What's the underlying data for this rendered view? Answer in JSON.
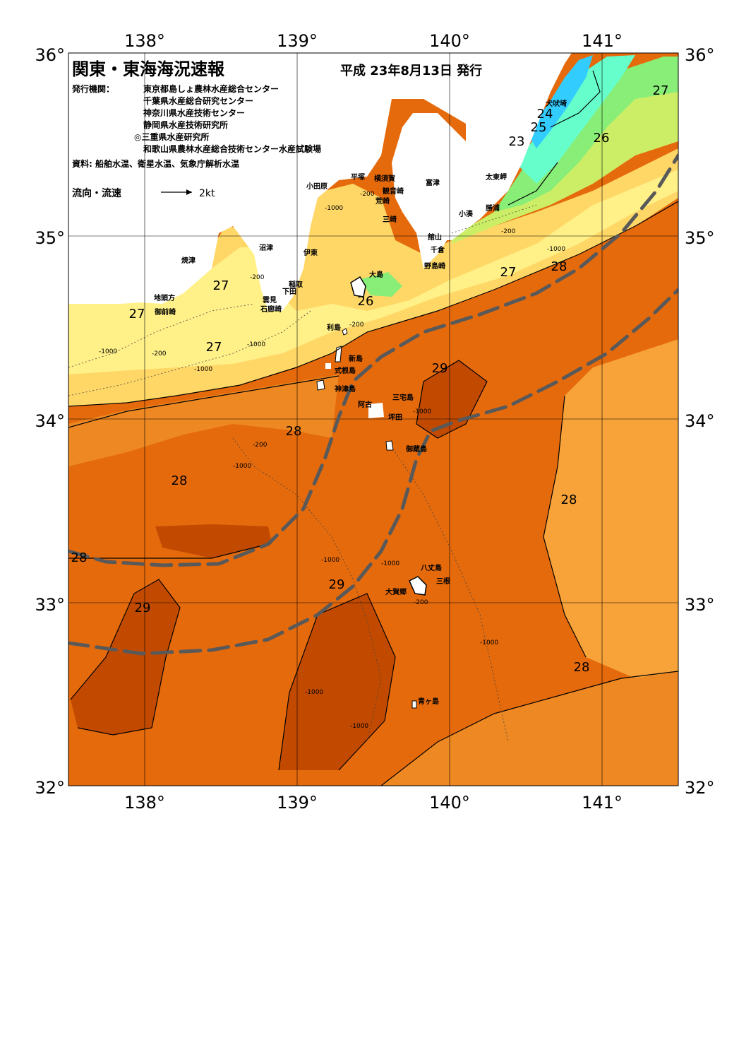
{
  "title": "関東・東海海況速報",
  "issue_date": "平成 23年8月13日 発行",
  "publishers_label": "発行機関：",
  "publishers": [
    "東京都島しょ農林水産総合センター",
    "千葉県水産総合研究センター",
    "神奈川県水産技術センター",
    "静岡県水産技術研究所",
    "◎三重県水産研究所",
    "和歌山県農林水産総合技術センター水産試験場"
  ],
  "source": "資料: 船舶水温、衛星水温、気象庁解析水温",
  "legend": {
    "label": "流向・流速",
    "speed": "2kt"
  },
  "axes": {
    "lon_ticks": [
      "138°",
      "139°",
      "140°",
      "141°"
    ],
    "lat_ticks": [
      "36°",
      "35°",
      "34°",
      "33°",
      "32°"
    ]
  },
  "place_names": [
    "犬吠埼",
    "太東岬",
    "勝浦",
    "小湊",
    "富津",
    "館山",
    "千倉",
    "野島崎",
    "横須賀",
    "観音崎",
    "平塚",
    "荒崎",
    "三崎",
    "小田原",
    "大島",
    "沼津",
    "伊東",
    "焼津",
    "稲取",
    "下田",
    "雲見",
    "石廊崎",
    "地頭方",
    "御前崎",
    "利島",
    "新島",
    "式根島",
    "神津島",
    "三宅島",
    "阿古",
    "坪田",
    "御蔵島",
    "八丈島",
    "三根",
    "大賀郷",
    "青ヶ島"
  ],
  "isotherm_labels": [
    "23",
    "24",
    "25",
    "26",
    "27",
    "28",
    "29"
  ],
  "depth_labels": [
    "-200",
    "-1000"
  ],
  "colors": {
    "t23": "#33ccff",
    "t24": "#66ffcc",
    "t25": "#88ee77",
    "t26": "#ccee66",
    "t27a": "#fff088",
    "t27b": "#ffd766",
    "t28a": "#f7a33a",
    "t28b": "#ee8822",
    "t28c": "#e56a0c",
    "t29": "#c24a00",
    "current": "#595959",
    "land": "#ffffff"
  }
}
